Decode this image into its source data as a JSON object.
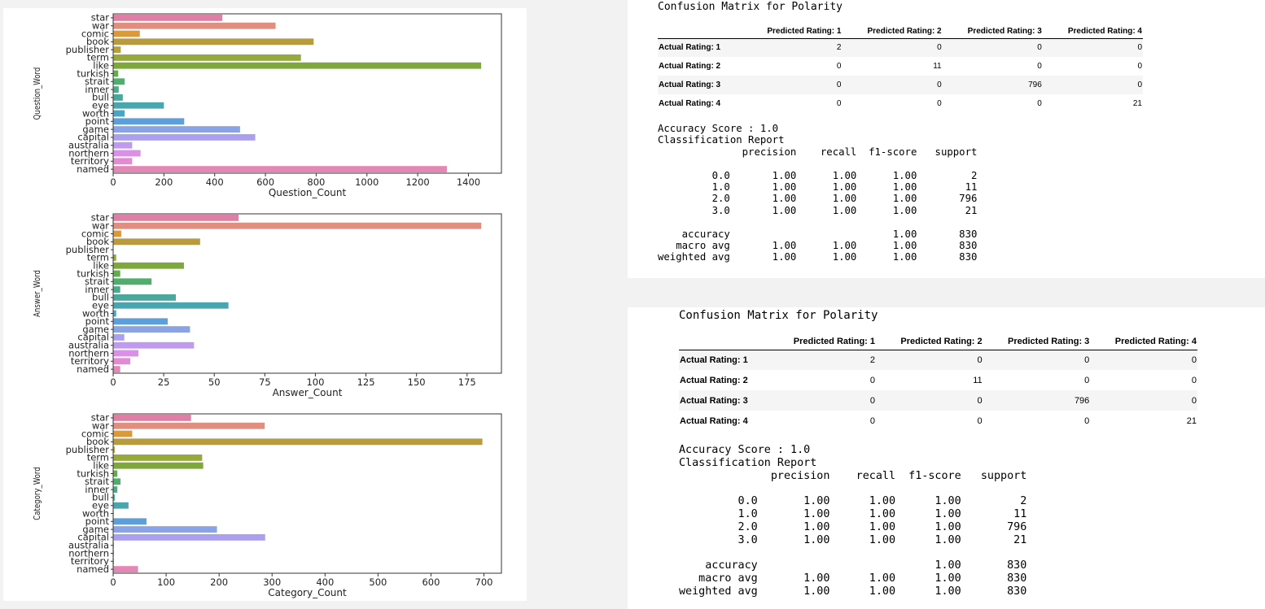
{
  "chart_data": [
    {
      "type": "bar",
      "orientation": "horizontal",
      "categories": [
        "star",
        "war",
        "comic",
        "book",
        "publisher",
        "term",
        "like",
        "turkish",
        "strait",
        "inner",
        "bull",
        "eye",
        "worth",
        "point",
        "game",
        "capital",
        "australia",
        "northern",
        "territory",
        "named"
      ],
      "values": [
        430,
        640,
        105,
        790,
        30,
        740,
        1450,
        20,
        45,
        22,
        38,
        200,
        45,
        280,
        500,
        560,
        75,
        108,
        75,
        1315
      ],
      "xlabel": "Question_Count",
      "ylabel": "Question_Word",
      "xlim": [
        0,
        1530
      ],
      "xticks": [
        0,
        200,
        400,
        600,
        800,
        1000,
        1200,
        1400
      ]
    },
    {
      "type": "bar",
      "orientation": "horizontal",
      "categories": [
        "star",
        "war",
        "comic",
        "book",
        "publisher",
        "term",
        "like",
        "turkish",
        "strait",
        "inner",
        "bull",
        "eye",
        "worth",
        "point",
        "game",
        "capital",
        "australia",
        "northern",
        "territory",
        "named"
      ],
      "values": [
        62,
        182,
        4,
        43,
        0,
        1.5,
        35,
        3.5,
        19,
        3.5,
        31,
        57,
        1.5,
        27,
        38,
        5.5,
        40,
        12.5,
        8.5,
        3.5
      ],
      "xlabel": "Answer_Count",
      "ylabel": "Answer_Word",
      "xlim": [
        0,
        192
      ],
      "xticks": [
        0,
        25,
        50,
        75,
        100,
        125,
        150,
        175
      ]
    },
    {
      "type": "bar",
      "orientation": "horizontal",
      "categories": [
        "star",
        "war",
        "comic",
        "book",
        "publisher",
        "term",
        "like",
        "turkish",
        "strait",
        "inner",
        "bull",
        "eye",
        "worth",
        "point",
        "game",
        "capital",
        "australia",
        "northern",
        "territory",
        "named"
      ],
      "values": [
        147,
        286,
        36,
        697,
        3,
        168,
        170,
        8,
        14,
        8,
        3,
        29,
        1,
        63,
        196,
        287,
        1.5,
        1.5,
        1.5,
        47
      ],
      "xlabel": "Category_Count",
      "ylabel": "Category_Word",
      "xlim": [
        0,
        733
      ],
      "xticks": [
        0,
        100,
        200,
        300,
        400,
        500,
        600,
        700
      ]
    }
  ],
  "palette": [
    "#e07fa6",
    "#e08e7f",
    "#d99a3c",
    "#b89a3f",
    "#b4a03c",
    "#97a83c",
    "#7ea83e",
    "#5fae4a",
    "#4fae6d",
    "#49ac88",
    "#48a89d",
    "#4aa6ae",
    "#4ca5c0",
    "#5c9fda",
    "#8aa2e6",
    "#aaa0ef",
    "#c09aef",
    "#d990e6",
    "#e28bd2",
    "#e587b4"
  ],
  "matrices": [
    {
      "title": "Confusion Matrix for Polarity",
      "columns": [
        "Predicted Rating: 1",
        "Predicted Rating: 2",
        "Predicted Rating: 3",
        "Predicted Rating: 4"
      ],
      "rows": [
        {
          "label": "Actual Rating: 1",
          "values": [
            "2",
            "0",
            "0",
            "0"
          ]
        },
        {
          "label": "Actual Rating: 2",
          "values": [
            "0",
            "11",
            "0",
            "0"
          ]
        },
        {
          "label": "Actual Rating: 3",
          "values": [
            "0",
            "0",
            "796",
            "0"
          ]
        },
        {
          "label": "Actual Rating: 4",
          "values": [
            "0",
            "0",
            "0",
            "21"
          ]
        }
      ],
      "report": "Accuracy Score : 1.0\nClassification Report\n              precision    recall  f1-score   support\n\n         0.0       1.00      1.00      1.00         2\n         1.0       1.00      1.00      1.00        11\n         2.0       1.00      1.00      1.00       796\n         3.0       1.00      1.00      1.00        21\n\n    accuracy                           1.00       830\n   macro avg       1.00      1.00      1.00       830\nweighted avg       1.00      1.00      1.00       830"
    },
    {
      "title": "Confusion Matrix for Polarity",
      "columns": [
        "Predicted Rating: 1",
        "Predicted Rating: 2",
        "Predicted Rating: 3",
        "Predicted Rating: 4"
      ],
      "rows": [
        {
          "label": "Actual Rating: 1",
          "values": [
            "2",
            "0",
            "0",
            "0"
          ]
        },
        {
          "label": "Actual Rating: 2",
          "values": [
            "0",
            "11",
            "0",
            "0"
          ]
        },
        {
          "label": "Actual Rating: 3",
          "values": [
            "0",
            "0",
            "796",
            "0"
          ]
        },
        {
          "label": "Actual Rating: 4",
          "values": [
            "0",
            "0",
            "0",
            "21"
          ]
        }
      ],
      "report": "Accuracy Score : 1.0\nClassification Report\n              precision    recall  f1-score   support\n\n         0.0       1.00      1.00      1.00         2\n         1.0       1.00      1.00      1.00        11\n         2.0       1.00      1.00      1.00       796\n         3.0       1.00      1.00      1.00        21\n\n    accuracy                           1.00       830\n   macro avg       1.00      1.00      1.00       830\nweighted avg       1.00      1.00      1.00       830"
    }
  ]
}
